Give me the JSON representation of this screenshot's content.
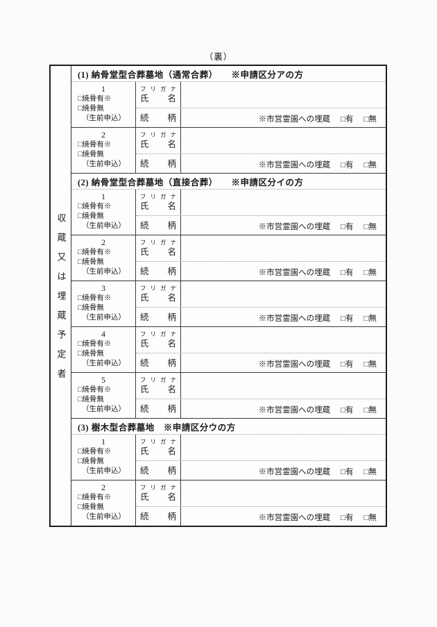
{
  "page": {
    "side_label": "（裏）"
  },
  "left_rail": {
    "label": "収蔵又は埋蔵予定者"
  },
  "entry_labels": {
    "furigana": [
      "フ",
      "リ",
      "ガ",
      "ナ"
    ],
    "name": [
      "氏",
      "名"
    ],
    "relation": [
      "続",
      "柄"
    ],
    "checkbox_cremated_yes": "□焼骨有※",
    "checkbox_cremated_no": "□焼骨無",
    "lifetime_note": "（生前申込）",
    "burial_note": "※市営霊園への埋蔵",
    "burial_yes": "□有",
    "burial_no": "□無"
  },
  "sections": [
    {
      "title": "(1) 納骨堂型合葬墓地（通常合葬）　　※申請区分アの方",
      "entries": [
        "1",
        "2"
      ]
    },
    {
      "title": "(2) 納骨堂型合葬墓地（直接合葬）　　※申請区分イの方",
      "entries": [
        "1",
        "2",
        "3",
        "4",
        "5"
      ]
    },
    {
      "title": "(3) 樹木型合葬墓地　※申請区分ウの方",
      "entries": [
        "1",
        "2"
      ]
    }
  ]
}
